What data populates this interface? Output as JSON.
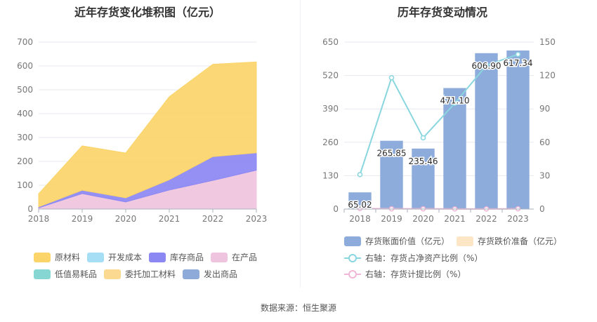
{
  "source_label": "数据来源：恒生聚源",
  "legend_left": [
    "原材料",
    "开发成本",
    "库存商品",
    "在产品",
    "低值易耗品",
    "委托加工材料",
    "发出商品"
  ],
  "legend_right": [
    "存货账面价值（亿元）",
    "存货跌价准备（亿元）",
    "右轴：存货占净资产比例（%）",
    "右轴：存货计提比例（%）"
  ],
  "colors": {
    "原材料": "#fbd46a",
    "开发成本": "#a6dff5",
    "库存商品": "#8b87f3",
    "在产品": "#efc4de",
    "低值易耗品": "#86d7d4",
    "委托加工材料": "#fcd990",
    "发出商品": "#8eaad9",
    "bar": "#8eacdb",
    "impairment": "#fde6c6",
    "ratio_line": "#8ad6df",
    "provision_line": "#f0b7d6"
  },
  "chart_data": [
    {
      "type": "area",
      "title": "近年存货变化堆积图（亿元）",
      "x": [
        "2018",
        "2019",
        "2020",
        "2021",
        "2022",
        "2023"
      ],
      "ylim": [
        0,
        700
      ],
      "yticks": [
        0,
        100,
        200,
        300,
        400,
        500,
        600,
        700
      ],
      "grid": true,
      "legend_position": "bottom",
      "series": [
        {
          "name": "在产品",
          "values": [
            5,
            65,
            30,
            80,
            120,
            163
          ]
        },
        {
          "name": "库存商品",
          "values": [
            4,
            14,
            17,
            43,
            100,
            73
          ]
        },
        {
          "name": "原材料",
          "values": [
            55,
            186,
            188,
            348,
            387,
            381
          ]
        }
      ]
    },
    {
      "type": "bar",
      "title": "历年存货变动情况",
      "categories": [
        "2018",
        "2019",
        "2020",
        "2021",
        "2022",
        "2023"
      ],
      "ylim": [
        0,
        650
      ],
      "yticks": [
        0,
        130,
        260,
        390,
        520,
        650
      ],
      "y2lim": [
        0,
        150
      ],
      "y2ticks": [
        0,
        30,
        60,
        90,
        120,
        150
      ],
      "grid": true,
      "legend_position": "bottom",
      "series": [
        {
          "name": "存货账面价值（亿元）",
          "values": [
            65.02,
            265.85,
            235.46,
            471.1,
            606.9,
            617.34
          ],
          "labels": [
            "65.02",
            "265.85",
            "235.46",
            "471.10",
            "606.90",
            "617.34"
          ]
        },
        {
          "name": "存货跌价准备（亿元）",
          "values": [
            0.3,
            0.4,
            0.5,
            0.6,
            0.8,
            0.9
          ]
        },
        {
          "name": "右轴：存货占净资产比例（%）",
          "axis": "right",
          "values": [
            31,
            118,
            64,
            95,
            129,
            139
          ]
        },
        {
          "name": "右轴：存货计提比例（%）",
          "axis": "right",
          "values": [
            0.5,
            0.2,
            0.2,
            0.1,
            0.1,
            0.2
          ]
        }
      ]
    }
  ]
}
